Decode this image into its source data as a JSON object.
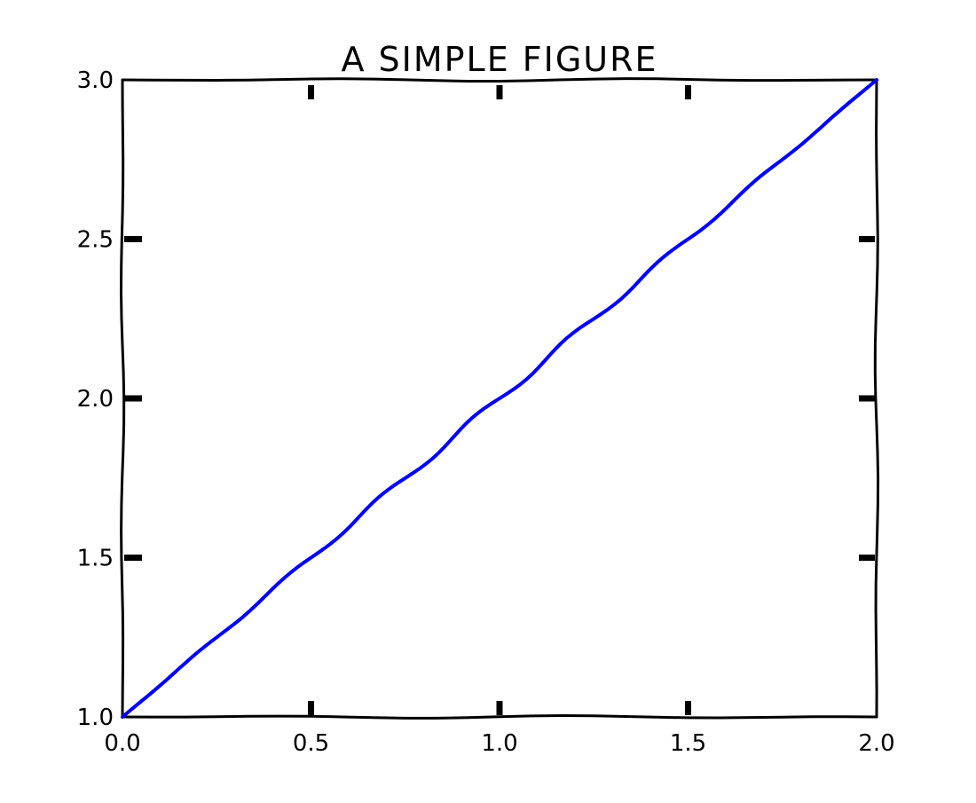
{
  "chart_data": {
    "type": "line",
    "title": "A SIMPLE FIGURE",
    "xlabel": "",
    "ylabel": "",
    "xlim": [
      0.0,
      2.0
    ],
    "ylim": [
      1.0,
      3.0
    ],
    "xticks": [
      "0.0",
      "0.5",
      "1.0",
      "1.5",
      "2.0"
    ],
    "yticks": [
      "1.0",
      "1.5",
      "2.0",
      "2.5",
      "3.0"
    ],
    "grid": false,
    "legend": "none",
    "series": [
      {
        "color": "#0000ff",
        "x": [
          0.0,
          0.1,
          0.2,
          0.3,
          0.4,
          0.5,
          0.6,
          0.7,
          0.8,
          0.9,
          1.0,
          1.1,
          1.2,
          1.3,
          1.4,
          1.5,
          1.6,
          1.7,
          1.8,
          1.9,
          2.0
        ],
        "y": [
          1.0,
          1.1,
          1.2,
          1.3,
          1.4,
          1.5,
          1.6,
          1.7,
          1.8,
          1.9,
          2.0,
          2.1,
          2.2,
          2.3,
          2.4,
          2.5,
          2.6,
          2.7,
          2.8,
          2.9,
          3.0
        ]
      }
    ]
  }
}
